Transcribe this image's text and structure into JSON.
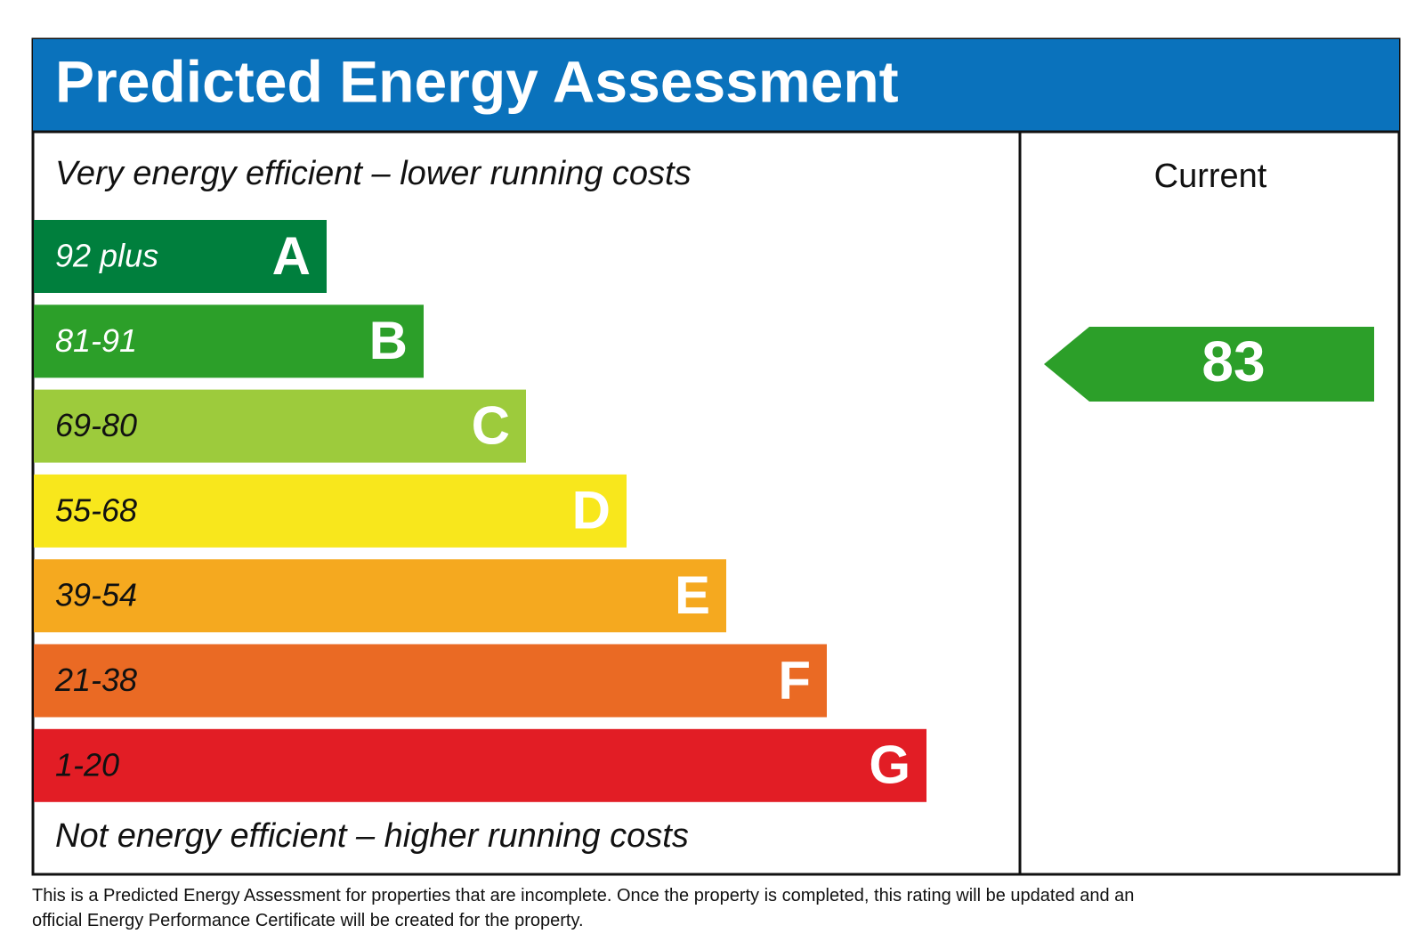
{
  "header": {
    "title": "Predicted Energy Assessment"
  },
  "top_note": "Very energy efficient – lower running costs",
  "bands": [
    {
      "range": "92 plus",
      "letter": "A",
      "color": "#007f3d"
    },
    {
      "range": "81-91",
      "letter": "B",
      "color": "#2c9f29"
    },
    {
      "range": "69-80",
      "letter": "C",
      "color": "#9dcb3c"
    },
    {
      "range": "55-68",
      "letter": "D",
      "color": "#f8e71c"
    },
    {
      "range": "39-54",
      "letter": "E",
      "color": "#f5a91f"
    },
    {
      "range": "21-38",
      "letter": "F",
      "color": "#ea6a24"
    },
    {
      "range": "1-20",
      "letter": "G",
      "color": "#e21d25"
    }
  ],
  "bottom_note": "Not energy efficient – higher running costs",
  "current": {
    "label": "Current",
    "value": 83,
    "color": "#2c9f29"
  },
  "footer": "This is a Predicted Energy Assessment for properties that are incomplete. Once the property is completed, this rating will be updated and an official Energy Performance Certificate will be created for the property."
}
